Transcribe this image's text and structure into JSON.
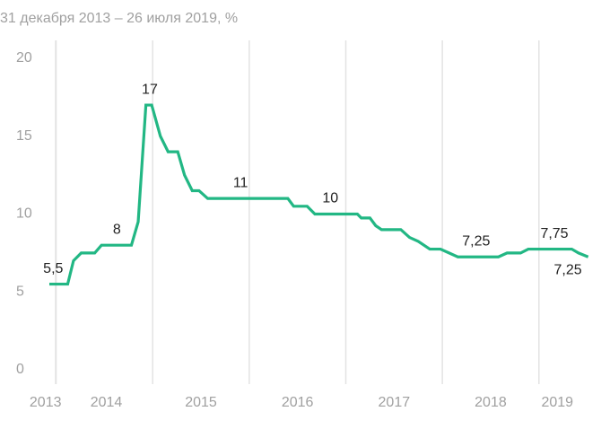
{
  "chart_data": {
    "type": "line",
    "title": "31 декабря 2013 – 26 июля 2019, %",
    "color": "#22b784",
    "x": [
      2013.93,
      2014.12,
      2014.18,
      2014.26,
      2014.4,
      2014.47,
      2014.78,
      2014.85,
      2014.93,
      2014.99,
      2015.08,
      2015.16,
      2015.26,
      2015.33,
      2015.41,
      2015.48,
      2015.57,
      2016.4,
      2016.46,
      2016.6,
      2016.68,
      2017.12,
      2017.16,
      2017.25,
      2017.31,
      2017.37,
      2017.57,
      2017.66,
      2017.75,
      2017.87,
      2017.98,
      2018.07,
      2018.16,
      2018.58,
      2018.67,
      2018.81,
      2018.89,
      2019.34,
      2019.41,
      2019.51
    ],
    "values": [
      5.5,
      5.5,
      7,
      7.5,
      7.5,
      8,
      8,
      9.5,
      17,
      17,
      15,
      14,
      14,
      12.5,
      11.5,
      11.5,
      11,
      11,
      10.5,
      10.5,
      10,
      10,
      9.75,
      9.75,
      9.25,
      9,
      9,
      8.5,
      8.25,
      7.75,
      7.75,
      7.5,
      7.25,
      7.25,
      7.5,
      7.5,
      7.75,
      7.75,
      7.5,
      7.25
    ],
    "annotations": [
      {
        "text": "5,5",
        "x": 2013.97,
        "y": 5.5
      },
      {
        "text": "8",
        "x": 2014.63,
        "y": 8
      },
      {
        "text": "17",
        "x": 2014.97,
        "y": 17
      },
      {
        "text": "11",
        "x": 2015.91,
        "y": 11
      },
      {
        "text": "10",
        "x": 2016.84,
        "y": 10
      },
      {
        "text": "7,25",
        "x": 2018.35,
        "y": 7.25
      },
      {
        "text": "7,75",
        "x": 2019.16,
        "y": 7.75
      },
      {
        "text": "7,25",
        "x": 2019.3,
        "y": 7.25
      }
    ],
    "xlim": [
      2013.93,
      2019.55
    ],
    "xticks": [
      {
        "value": 2013.89,
        "label": "2013"
      },
      {
        "value": 2014.52,
        "label": "2014"
      },
      {
        "value": 2015.5,
        "label": "2015"
      },
      {
        "value": 2016.5,
        "label": "2016"
      },
      {
        "value": 2017.5,
        "label": "2017"
      },
      {
        "value": 2018.5,
        "label": "2018"
      },
      {
        "value": 2019.19,
        "label": "2019"
      }
    ],
    "xgrid": [
      2014,
      2015,
      2016,
      2017,
      2018,
      2019
    ],
    "ylim": [
      0,
      20
    ],
    "yticks": [
      0,
      5,
      10,
      15,
      20
    ]
  }
}
